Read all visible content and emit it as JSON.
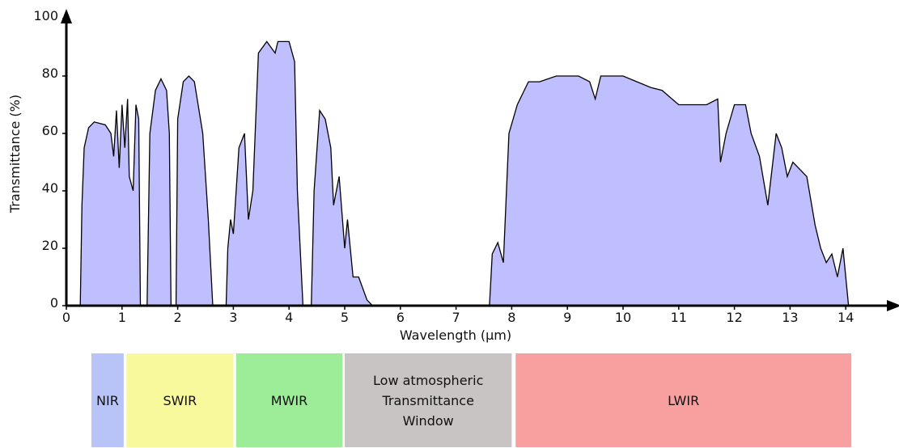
{
  "chart_data": {
    "type": "area",
    "xlabel": "Wavelength (µm)",
    "ylabel": "Transmittance (%)",
    "xlim": [
      0,
      15
    ],
    "ylim": [
      0,
      100
    ],
    "xticks": [
      0,
      1,
      2,
      3,
      4,
      5,
      6,
      7,
      8,
      9,
      10,
      11,
      12,
      13,
      14
    ],
    "yticks": [
      0,
      20,
      40,
      60,
      80,
      100
    ],
    "color": "#bfbfff",
    "x": [
      0.25,
      0.28,
      0.32,
      0.4,
      0.5,
      0.7,
      0.8,
      0.85,
      0.9,
      0.95,
      1.0,
      1.05,
      1.1,
      1.13,
      1.2,
      1.25,
      1.3,
      1.33,
      1.45,
      1.5,
      1.6,
      1.7,
      1.8,
      1.85,
      1.88,
      1.97,
      2.0,
      2.1,
      2.2,
      2.3,
      2.45,
      2.55,
      2.63,
      2.87,
      2.9,
      2.95,
      3.0,
      3.1,
      3.2,
      3.27,
      3.35,
      3.45,
      3.6,
      3.75,
      3.8,
      4.0,
      4.1,
      4.15,
      4.2,
      4.25,
      4.4,
      4.45,
      4.55,
      4.65,
      4.75,
      4.8,
      4.9,
      5.0,
      5.05,
      5.15,
      5.25,
      5.4,
      5.5,
      7.6,
      7.65,
      7.75,
      7.85,
      7.95,
      8.1,
      8.3,
      8.5,
      8.8,
      9.2,
      9.4,
      9.5,
      9.6,
      10.0,
      10.5,
      10.7,
      11.0,
      11.5,
      11.7,
      11.75,
      11.85,
      12.0,
      12.2,
      12.3,
      12.45,
      12.6,
      12.75,
      12.85,
      12.95,
      13.05,
      13.3,
      13.45,
      13.55,
      13.65,
      13.75,
      13.85,
      13.95,
      14.05
    ],
    "values": [
      0,
      35,
      55,
      62,
      64,
      63,
      60,
      52,
      68,
      48,
      70,
      55,
      72,
      45,
      40,
      70,
      65,
      0,
      0,
      60,
      75,
      79,
      75,
      60,
      0,
      0,
      65,
      78,
      80,
      78,
      60,
      30,
      0,
      0,
      20,
      30,
      25,
      55,
      60,
      30,
      40,
      88,
      92,
      88,
      92,
      92,
      85,
      40,
      20,
      0,
      0,
      40,
      68,
      65,
      55,
      35,
      45,
      20,
      30,
      10,
      10,
      2,
      0,
      0,
      18,
      22,
      15,
      60,
      70,
      78,
      78,
      80,
      80,
      78,
      72,
      80,
      80,
      76,
      75,
      70,
      70,
      72,
      50,
      60,
      70,
      70,
      60,
      52,
      35,
      60,
      55,
      45,
      50,
      45,
      28,
      20,
      15,
      18,
      10,
      20,
      0
    ],
    "bands": [
      {
        "lines": [
          "NIR"
        ],
        "range": [
          0.45,
          1.03
        ],
        "color": "#b8c4f8"
      },
      {
        "lines": [
          "SWIR"
        ],
        "range": [
          1.08,
          3.0
        ],
        "color": "#f8f89c"
      },
      {
        "lines": [
          "MWIR"
        ],
        "range": [
          3.05,
          4.96
        ],
        "color": "#9cec98"
      },
      {
        "lines": [
          "Low atmospheric",
          "Transmittance",
          "Window"
        ],
        "range": [
          5.0,
          8.0
        ],
        "color": "#c8c4c4"
      },
      {
        "lines": [
          "LWIR"
        ],
        "range": [
          8.07,
          14.1
        ],
        "color": "#f8a0a0"
      }
    ]
  }
}
